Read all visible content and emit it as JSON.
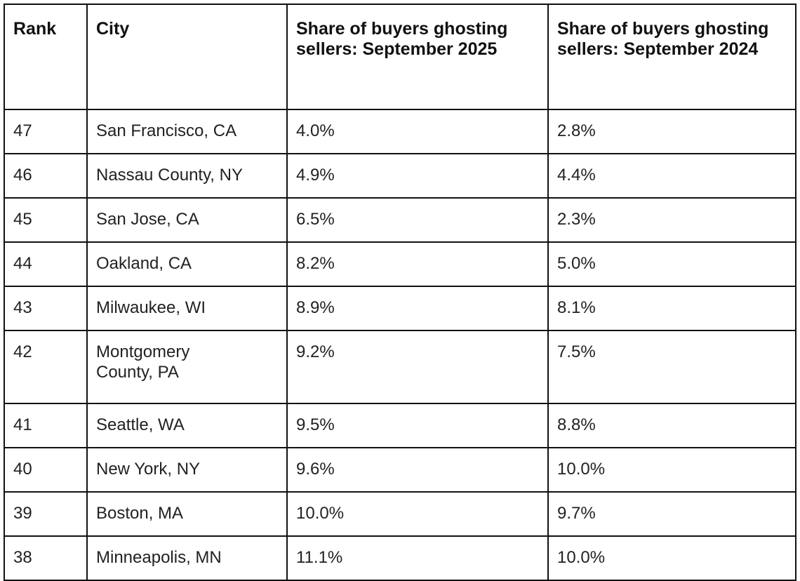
{
  "table": {
    "headers": [
      "Rank",
      "City",
      "Share of buyers ghosting sellers: September 2025",
      "Share of buyers ghosting sellers: September 2024"
    ],
    "rows": [
      [
        "47",
        "San Francisco, CA",
        "4.0%",
        "2.8%"
      ],
      [
        "46",
        "Nassau County, NY",
        "4.9%",
        "4.4%"
      ],
      [
        "45",
        "San Jose, CA",
        "6.5%",
        "2.3%"
      ],
      [
        "44",
        "Oakland, CA",
        "8.2%",
        "5.0%"
      ],
      [
        "43",
        "Milwaukee, WI",
        "8.9%",
        "8.1%"
      ],
      [
        "42",
        "Montgomery County, PA",
        "9.2%",
        "7.5%"
      ],
      [
        "41",
        "Seattle, WA",
        "9.5%",
        "8.8%"
      ],
      [
        "40",
        "New York, NY",
        "9.6%",
        "10.0%"
      ],
      [
        "39",
        "Boston, MA",
        "10.0%",
        "9.7%"
      ],
      [
        "38",
        "Minneapolis, MN",
        "11.1%",
        "10.0%"
      ]
    ]
  }
}
